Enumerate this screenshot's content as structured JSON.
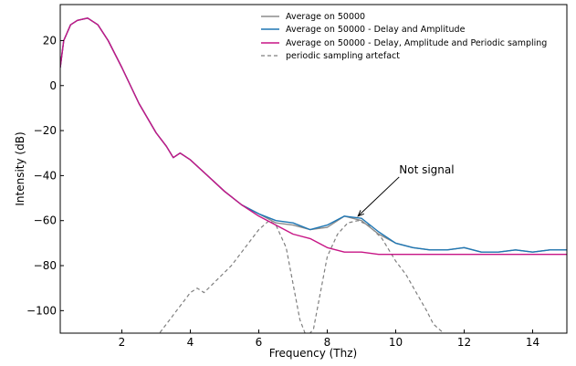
{
  "chart_data": {
    "type": "line",
    "title": "",
    "xlabel": "Frequency (Thz)",
    "ylabel": "Intensity (dB)",
    "xlim": [
      0.2,
      15.0
    ],
    "ylim": [
      -110,
      36
    ],
    "xticks": [
      2,
      4,
      6,
      8,
      10,
      12,
      14
    ],
    "yticks": [
      20,
      0,
      -20,
      -40,
      -60,
      -80,
      -100
    ],
    "xtick_labels": [
      "2",
      "4",
      "6",
      "8",
      "10",
      "12",
      "14"
    ],
    "ytick_labels": [
      "20",
      "0",
      "−20",
      "−40",
      "−60",
      "−80",
      "−100"
    ],
    "grid": false,
    "legend_position": "top-right",
    "series": [
      {
        "name": "Average on 50000",
        "color": "#8c8c8c",
        "style": "solid",
        "x": [
          0.2,
          0.3,
          0.5,
          0.7,
          1.0,
          1.3,
          1.6,
          2.0,
          2.5,
          3.0,
          3.3,
          3.5,
          3.7,
          4.0,
          4.5,
          5.0,
          5.5,
          6.0,
          6.5,
          7.0,
          7.5,
          8.0,
          8.5,
          9.0,
          9.5,
          10.0,
          10.5,
          11.0,
          11.5,
          12.0,
          12.5,
          13.0,
          13.5,
          14.0,
          14.5,
          15.0
        ],
        "y": [
          8,
          20,
          27,
          29,
          30,
          27,
          20,
          8,
          -8,
          -21,
          -27,
          -32,
          -30,
          -33,
          -40,
          -47,
          -53,
          -57,
          -61,
          -62,
          -64,
          -63,
          -58,
          -60,
          -66,
          -70,
          -72,
          -73,
          -73,
          -72,
          -74,
          -74,
          -73,
          -74,
          -73,
          -73
        ]
      },
      {
        "name": "Average on 50000 - Delay and Amplitude",
        "color": "#1f77b4",
        "style": "solid",
        "x": [
          0.2,
          0.3,
          0.5,
          0.7,
          1.0,
          1.3,
          1.6,
          2.0,
          2.5,
          3.0,
          3.3,
          3.5,
          3.7,
          4.0,
          4.5,
          5.0,
          5.5,
          6.0,
          6.5,
          7.0,
          7.5,
          8.0,
          8.5,
          9.0,
          9.5,
          10.0,
          10.5,
          11.0,
          11.5,
          12.0,
          12.5,
          13.0,
          13.5,
          14.0,
          14.5,
          15.0
        ],
        "y": [
          8,
          20,
          27,
          29,
          30,
          27,
          20,
          8,
          -8,
          -21,
          -27,
          -32,
          -30,
          -33,
          -40,
          -47,
          -53,
          -57,
          -60,
          -61,
          -64,
          -62,
          -58,
          -59,
          -65,
          -70,
          -72,
          -73,
          -73,
          -72,
          -74,
          -74,
          -73,
          -74,
          -73,
          -73
        ]
      },
      {
        "name": "Average on 50000 - Delay, Amplitude and Periodic sampling",
        "color": "#c71585",
        "style": "solid",
        "x": [
          0.2,
          0.3,
          0.5,
          0.7,
          1.0,
          1.3,
          1.6,
          2.0,
          2.5,
          3.0,
          3.3,
          3.5,
          3.7,
          4.0,
          4.5,
          5.0,
          5.5,
          6.0,
          6.5,
          7.0,
          7.5,
          8.0,
          8.5,
          9.0,
          9.5,
          10.0,
          10.5,
          11.0,
          11.5,
          12.0,
          12.5,
          13.0,
          13.5,
          14.0,
          14.5,
          15.0
        ],
        "y": [
          8,
          20,
          27,
          29,
          30,
          27,
          20,
          8,
          -8,
          -21,
          -27,
          -32,
          -30,
          -33,
          -40,
          -47,
          -53,
          -58,
          -62,
          -66,
          -68,
          -72,
          -74,
          -74,
          -75,
          -75,
          -75,
          -75,
          -75,
          -75,
          -75,
          -75,
          -75,
          -75,
          -75,
          -75
        ]
      },
      {
        "name": "periodic sampling artefact",
        "color": "#7f7f7f",
        "style": "dashed",
        "x": [
          3.0,
          3.4,
          3.6,
          3.8,
          4.0,
          4.2,
          4.4,
          4.8,
          5.2,
          5.6,
          6.0,
          6.3,
          6.5,
          6.8,
          7.0,
          7.2,
          7.4,
          7.6,
          7.8,
          8.0,
          8.3,
          8.6,
          8.9,
          9.2,
          9.6,
          10.0,
          10.3,
          10.6,
          10.9,
          11.1,
          11.4,
          11.7,
          12.0,
          12.2
        ],
        "y": [
          -112,
          -104,
          -100,
          -96,
          -92,
          -90,
          -92,
          -86,
          -80,
          -72,
          -64,
          -60,
          -62,
          -72,
          -88,
          -104,
          -112,
          -108,
          -92,
          -76,
          -66,
          -61,
          -60,
          -62,
          -68,
          -78,
          -84,
          -92,
          -100,
          -106,
          -110,
          -112,
          -114,
          -116
        ]
      }
    ],
    "annotations": [
      {
        "text": "Not signal",
        "xytext": [
          10.1,
          -39
        ],
        "xy": [
          8.9,
          -58
        ]
      }
    ]
  }
}
